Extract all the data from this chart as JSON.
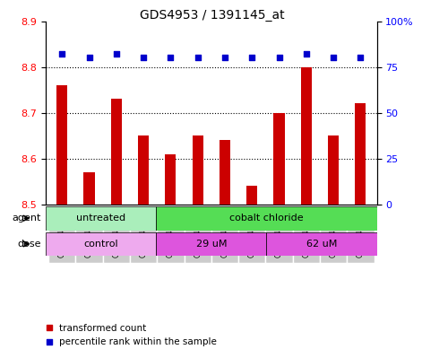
{
  "title": "GDS4953 / 1391145_at",
  "samples": [
    "GSM1240502",
    "GSM1240505",
    "GSM1240508",
    "GSM1240511",
    "GSM1240503",
    "GSM1240506",
    "GSM1240509",
    "GSM1240512",
    "GSM1240504",
    "GSM1240507",
    "GSM1240510",
    "GSM1240513"
  ],
  "bar_values": [
    8.76,
    8.57,
    8.73,
    8.65,
    8.61,
    8.65,
    8.64,
    8.54,
    8.7,
    8.8,
    8.65,
    8.72
  ],
  "percentile_values": [
    82,
    80,
    82,
    80,
    80,
    80,
    80,
    80,
    80,
    82,
    80,
    80
  ],
  "ylim_left": [
    8.5,
    8.9
  ],
  "ylim_right": [
    0,
    100
  ],
  "yticks_left": [
    8.5,
    8.6,
    8.7,
    8.8,
    8.9
  ],
  "yticks_right": [
    0,
    25,
    50,
    75,
    100
  ],
  "ytick_labels_right": [
    "0",
    "25",
    "50",
    "75",
    "100%"
  ],
  "bar_color": "#cc0000",
  "dot_color": "#0000cc",
  "bar_bottom": 8.5,
  "agent_groups": [
    {
      "label": "untreated",
      "start": 0,
      "end": 4,
      "color": "#aaeebb"
    },
    {
      "label": "cobalt chloride",
      "start": 4,
      "end": 12,
      "color": "#55dd55"
    }
  ],
  "dose_groups": [
    {
      "label": "control",
      "start": 0,
      "end": 4,
      "color": "#eeaaee"
    },
    {
      "label": "29 uM",
      "start": 4,
      "end": 8,
      "color": "#dd55dd"
    },
    {
      "label": "62 uM",
      "start": 8,
      "end": 12,
      "color": "#dd55dd"
    }
  ],
  "agent_label": "agent",
  "dose_label": "dose",
  "legend_bar_label": "transformed count",
  "legend_dot_label": "percentile rank within the sample",
  "dotted_lines": [
    8.6,
    8.7,
    8.8
  ],
  "plot_bg": "#ffffff",
  "title_fontsize": 10,
  "tick_fontsize": 8,
  "label_fontsize": 8,
  "bar_width": 0.4
}
